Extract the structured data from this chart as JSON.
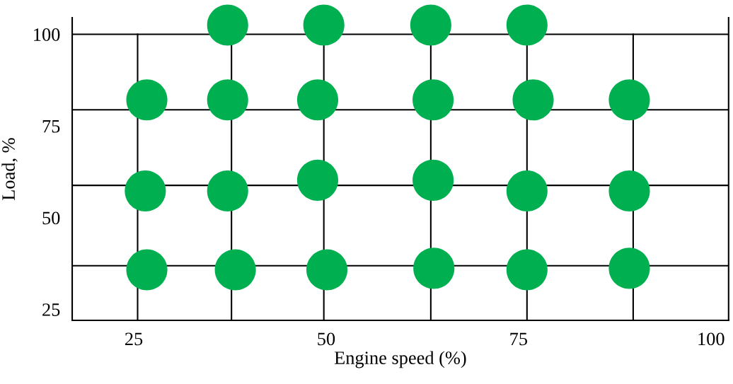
{
  "chart_data": {
    "type": "scatter",
    "xlabel": "Engine speed (%)",
    "ylabel": "Load, %",
    "x": [
      37.2,
      49.7,
      63.6,
      76.1,
      26.7,
      37.2,
      48.9,
      63.9,
      76.9,
      89.4,
      26.5,
      37.2,
      48.9,
      63.9,
      76.1,
      89.4,
      26.7,
      38.2,
      50.1,
      64.0,
      76.1,
      89.4
    ],
    "series": [
      {
        "color": "#00b050",
        "values": [
          102.5,
          102.5,
          102.5,
          102.5,
          82.1,
          82.1,
          82.1,
          82.1,
          82.1,
          82.1,
          57.3,
          57.3,
          60.2,
          60.2,
          57.3,
          57.3,
          35.8,
          35.8,
          35.8,
          36.2,
          35.8,
          36.2
        ]
      }
    ],
    "marker": "circle",
    "grid": false,
    "xlim": [
      17,
      102.3
    ],
    "ylim": [
      22,
      104.5
    ],
    "xticks": [
      25,
      50,
      75,
      100
    ],
    "yticks": [
      25,
      50,
      75,
      100
    ],
    "ref_lines": [
      {
        "axis": "x",
        "value": 25.5,
        "color": "#000000"
      },
      {
        "axis": "x",
        "value": 37.7,
        "color": "#000000"
      },
      {
        "axis": "x",
        "value": 49.7,
        "color": "#000000"
      },
      {
        "axis": "x",
        "value": 63.6,
        "color": "#000000"
      },
      {
        "axis": "x",
        "value": 76.1,
        "color": "#000000"
      },
      {
        "axis": "x",
        "value": 89.9,
        "color": "#000000"
      },
      {
        "axis": "y",
        "value": 100,
        "color": "#000000"
      },
      {
        "axis": "y",
        "value": 79.4,
        "color": "#000000"
      },
      {
        "axis": "y",
        "value": 58.8,
        "color": "#000000"
      },
      {
        "axis": "y",
        "value": 36.9,
        "color": "#000000"
      }
    ]
  }
}
